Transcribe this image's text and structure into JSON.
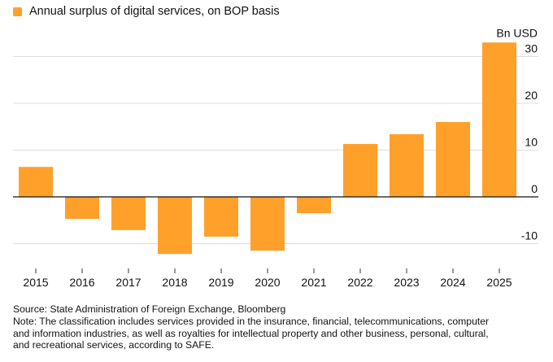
{
  "chart_data": {
    "type": "bar",
    "title": "",
    "legend": [
      {
        "label": "Annual surplus of digital services, on BOP basis",
        "color": "#FFA02B"
      }
    ],
    "legend_position": "top-left",
    "unit_label": "Bn USD",
    "categories": [
      "2015",
      "2016",
      "2017",
      "2018",
      "2019",
      "2020",
      "2021",
      "2022",
      "2023",
      "2024",
      "2025"
    ],
    "series": [
      {
        "name": "Annual surplus of digital services, on BOP basis",
        "values": [
          6.4,
          -4.7,
          -7.1,
          -12.2,
          -8.5,
          -11.5,
          -3.5,
          11.3,
          13.4,
          16.0,
          33.0
        ]
      }
    ],
    "y_ticks": [
      30,
      20,
      10,
      0,
      -10
    ],
    "y_tick_labels": [
      "30",
      "20",
      "10",
      "0",
      "-10"
    ],
    "ylim": [
      -13,
      33
    ],
    "y_axis_position": "right",
    "grid": true,
    "xlabel": "",
    "ylabel": "Bn USD"
  },
  "footer": {
    "source": "Source: State Administration of Foreign Exchange, Bloomberg",
    "note_lines": [
      "Note: The classification includes services provided in the insurance, financial, telecommunications, computer",
      "and information industries, as well as royalties for intellectual property and other business, personal, cultural,",
      "and recreational services, according to SAFE."
    ]
  },
  "colors": {
    "bar": "#FFA02B",
    "grid": "#DDDDDD",
    "axis": "#111111"
  }
}
